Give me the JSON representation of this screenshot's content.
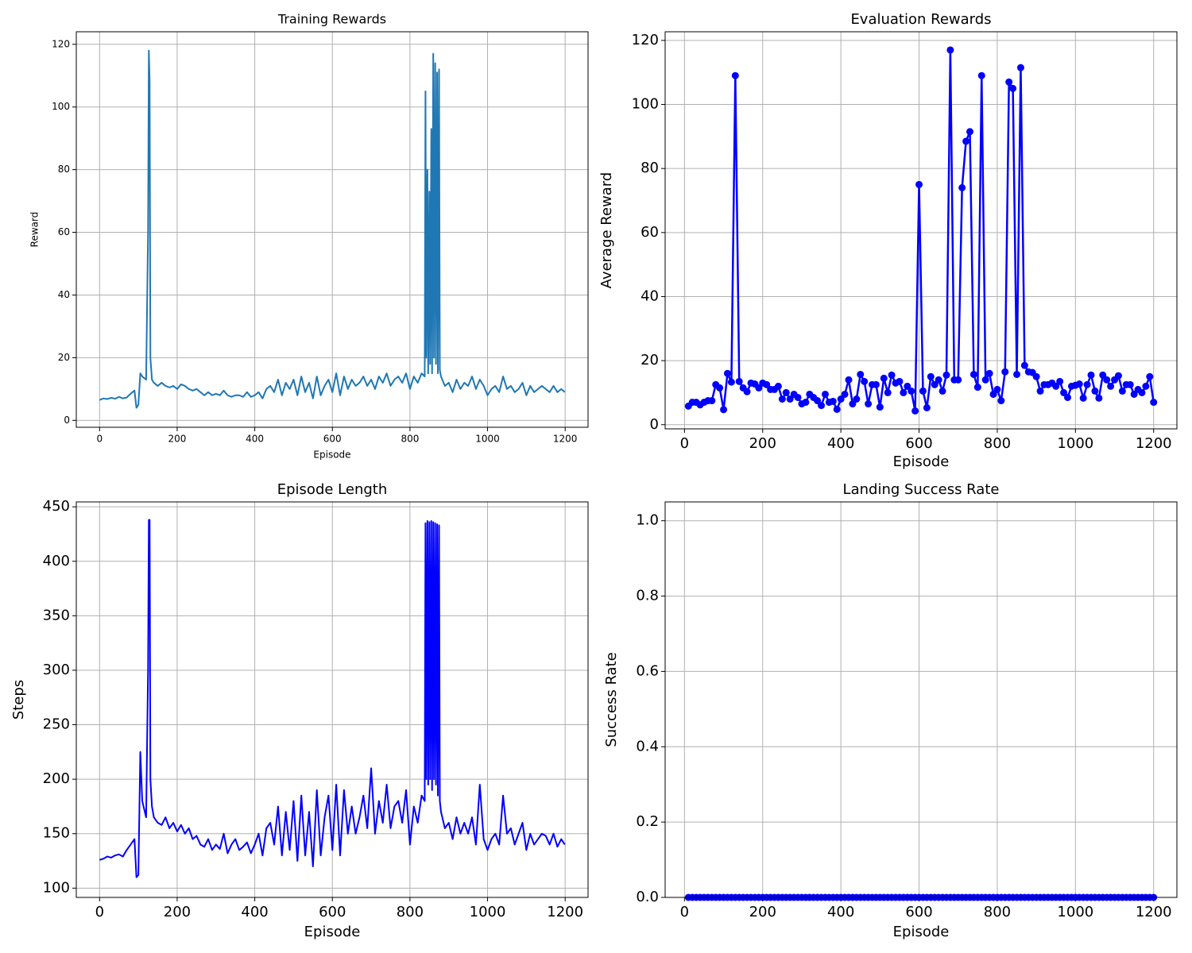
{
  "chart_data": [
    {
      "type": "line",
      "title": "Training Rewards",
      "xlabel": "Episode",
      "ylabel": "Reward",
      "color": "#1f77b4",
      "marker": false,
      "grid": true,
      "xlim": [
        -60,
        1259
      ],
      "ylim": [
        -2.2,
        124
      ],
      "xticks": [
        0,
        200,
        400,
        600,
        800,
        1000,
        1200
      ],
      "yticks": [
        0,
        20,
        40,
        60,
        80,
        100,
        120
      ],
      "x": [
        0,
        10,
        20,
        30,
        40,
        50,
        60,
        70,
        80,
        90,
        95,
        100,
        105,
        110,
        120,
        125,
        127,
        129,
        131,
        135,
        140,
        150,
        160,
        170,
        180,
        190,
        200,
        210,
        220,
        230,
        240,
        250,
        260,
        270,
        280,
        290,
        300,
        310,
        320,
        330,
        340,
        350,
        360,
        370,
        380,
        390,
        400,
        410,
        420,
        430,
        440,
        450,
        460,
        470,
        480,
        490,
        500,
        510,
        520,
        530,
        540,
        550,
        560,
        570,
        580,
        590,
        600,
        610,
        620,
        630,
        640,
        650,
        660,
        670,
        680,
        690,
        700,
        710,
        720,
        730,
        740,
        750,
        760,
        770,
        780,
        790,
        800,
        810,
        820,
        830,
        838,
        840,
        842,
        845,
        847,
        850,
        852,
        855,
        857,
        860,
        862,
        865,
        867,
        870,
        872,
        875,
        877,
        880,
        890,
        900,
        910,
        920,
        930,
        940,
        950,
        960,
        970,
        980,
        990,
        1000,
        1010,
        1020,
        1030,
        1040,
        1050,
        1060,
        1070,
        1080,
        1090,
        1100,
        1110,
        1120,
        1130,
        1140,
        1150,
        1160,
        1170,
        1180,
        1190,
        1199
      ],
      "values": [
        6.5,
        7,
        6.8,
        7.2,
        6.9,
        7.5,
        7,
        7.3,
        8.5,
        9.5,
        4,
        5,
        15,
        14,
        13,
        60,
        118,
        108,
        20,
        13,
        12,
        11,
        12,
        11,
        10.5,
        11,
        10,
        11.5,
        11,
        10,
        9.5,
        10,
        9,
        8,
        9,
        8,
        8.5,
        8,
        9.5,
        8,
        7.5,
        8,
        8,
        7.5,
        9,
        7.5,
        8,
        9,
        7,
        10,
        11,
        9,
        13,
        8,
        12,
        10,
        13,
        8,
        14,
        9,
        12,
        7,
        14,
        8,
        11,
        13,
        9,
        15,
        8,
        14,
        10,
        13,
        11,
        12,
        14,
        11,
        13,
        10,
        14,
        12,
        15,
        11,
        13,
        14,
        12,
        15,
        10,
        14,
        12,
        15,
        14,
        105,
        20,
        80,
        15,
        73,
        18,
        93,
        15,
        117,
        20,
        114,
        18,
        111,
        15,
        112,
        16,
        14,
        11,
        12,
        9,
        13,
        10,
        12,
        11,
        14,
        10,
        13,
        11,
        8,
        10,
        11,
        9,
        14,
        10,
        11,
        9,
        10,
        12,
        8,
        11,
        9,
        10,
        11,
        10,
        9,
        11,
        9,
        10,
        9
      ]
    },
    {
      "type": "line",
      "title": "Evaluation Rewards",
      "xlabel": "Episode",
      "ylabel": "Average Reward",
      "color": "blue",
      "marker": true,
      "grid": true,
      "xlim": [
        -49.5,
        1259.5
      ],
      "ylim": [
        -1.3,
        122.7
      ],
      "xticks": [
        0,
        200,
        400,
        600,
        800,
        1000,
        1200
      ],
      "yticks": [
        0,
        20,
        40,
        60,
        80,
        100,
        120
      ],
      "x": [
        10,
        20,
        30,
        40,
        50,
        60,
        70,
        80,
        90,
        100,
        110,
        120,
        130,
        140,
        150,
        160,
        170,
        180,
        190,
        200,
        210,
        220,
        230,
        240,
        250,
        260,
        270,
        280,
        290,
        300,
        310,
        320,
        330,
        340,
        350,
        360,
        370,
        380,
        390,
        400,
        410,
        420,
        430,
        440,
        450,
        460,
        470,
        480,
        490,
        500,
        510,
        520,
        530,
        540,
        550,
        560,
        570,
        580,
        590,
        600,
        610,
        620,
        630,
        640,
        650,
        660,
        670,
        680,
        690,
        700,
        710,
        720,
        730,
        740,
        750,
        760,
        770,
        780,
        790,
        800,
        810,
        820,
        830,
        840,
        850,
        860,
        870,
        880,
        890,
        900,
        910,
        920,
        930,
        940,
        950,
        960,
        970,
        980,
        990,
        1000,
        1010,
        1020,
        1030,
        1040,
        1050,
        1060,
        1070,
        1080,
        1090,
        1100,
        1110,
        1120,
        1130,
        1140,
        1150,
        1160,
        1170,
        1180,
        1190,
        1200
      ],
      "values": [
        5.8,
        7,
        7,
        6.2,
        7,
        7.5,
        7.5,
        12.5,
        11.5,
        4.7,
        16,
        13.3,
        109,
        13.5,
        11.5,
        10.3,
        13,
        12.7,
        11.5,
        13,
        12.5,
        11,
        11,
        12,
        8,
        10,
        8,
        9.5,
        8.5,
        6.5,
        7,
        9.5,
        8.5,
        7.5,
        6,
        9.5,
        7,
        7.3,
        4.8,
        8,
        9.5,
        14,
        6.5,
        8,
        15.7,
        13.5,
        6.5,
        12.5,
        12.5,
        5.5,
        14.5,
        10,
        15.5,
        13,
        13.5,
        10,
        12,
        10.5,
        4.3,
        75,
        10.5,
        5.3,
        15,
        12.5,
        14,
        10.5,
        15.5,
        117,
        14,
        14,
        74,
        88.5,
        91.5,
        15.7,
        11.7,
        109,
        14,
        16,
        9.5,
        11,
        7.5,
        16.5,
        107,
        105,
        15.7,
        111.5,
        18.5,
        16.5,
        16.3,
        15,
        10.5,
        12.5,
        12.5,
        13,
        12,
        13.5,
        10,
        8.5,
        12,
        12.3,
        12.7,
        8.3,
        12.5,
        15.5,
        10.5,
        8.3,
        15.5,
        14,
        12,
        14,
        15.3,
        10.5,
        12.5,
        12.5,
        9.5,
        11,
        10,
        12,
        15,
        7
      ]
    },
    {
      "type": "line",
      "title": "Episode Length",
      "xlabel": "Episode",
      "ylabel": "Steps",
      "color": "blue",
      "marker": false,
      "grid": true,
      "xlim": [
        -60,
        1259
      ],
      "ylim": [
        91.5,
        454.5
      ],
      "xticks": [
        0,
        200,
        400,
        600,
        800,
        1000,
        1200
      ],
      "yticks": [
        100,
        150,
        200,
        250,
        300,
        350,
        400,
        450
      ],
      "x": [
        0,
        10,
        20,
        30,
        40,
        50,
        60,
        70,
        80,
        90,
        95,
        100,
        105,
        110,
        120,
        125,
        127,
        129,
        131,
        135,
        140,
        150,
        160,
        170,
        180,
        190,
        200,
        210,
        220,
        230,
        240,
        250,
        260,
        270,
        280,
        290,
        300,
        310,
        320,
        330,
        340,
        350,
        360,
        370,
        380,
        390,
        400,
        410,
        420,
        430,
        440,
        450,
        460,
        470,
        480,
        490,
        500,
        510,
        520,
        530,
        540,
        550,
        560,
        570,
        580,
        590,
        600,
        610,
        620,
        630,
        640,
        650,
        660,
        670,
        680,
        690,
        700,
        710,
        720,
        730,
        740,
        750,
        760,
        770,
        780,
        790,
        800,
        810,
        820,
        830,
        838,
        840,
        842,
        845,
        847,
        850,
        852,
        855,
        857,
        860,
        862,
        865,
        867,
        870,
        872,
        875,
        877,
        880,
        890,
        900,
        910,
        920,
        930,
        940,
        950,
        960,
        970,
        980,
        990,
        1000,
        1010,
        1020,
        1030,
        1040,
        1050,
        1060,
        1070,
        1080,
        1090,
        1100,
        1110,
        1120,
        1130,
        1140,
        1150,
        1160,
        1170,
        1180,
        1190,
        1199
      ],
      "values": [
        126,
        127,
        129,
        128,
        130,
        131,
        129,
        135,
        140,
        145,
        110,
        112,
        225,
        180,
        165,
        300,
        438,
        438,
        200,
        175,
        165,
        160,
        158,
        165,
        155,
        160,
        152,
        158,
        150,
        155,
        145,
        148,
        140,
        138,
        145,
        135,
        140,
        136,
        150,
        132,
        140,
        145,
        135,
        138,
        142,
        132,
        140,
        150,
        130,
        155,
        160,
        140,
        175,
        130,
        170,
        135,
        180,
        125,
        185,
        130,
        170,
        120,
        190,
        130,
        165,
        185,
        135,
        195,
        130,
        190,
        150,
        175,
        150,
        165,
        185,
        155,
        210,
        150,
        180,
        160,
        195,
        155,
        175,
        180,
        160,
        190,
        140,
        175,
        160,
        185,
        180,
        435,
        200,
        437,
        195,
        436,
        200,
        437,
        190,
        436,
        200,
        435,
        195,
        434,
        185,
        433,
        180,
        170,
        155,
        160,
        145,
        165,
        150,
        160,
        150,
        165,
        140,
        195,
        145,
        135,
        145,
        150,
        140,
        185,
        150,
        155,
        140,
        150,
        160,
        135,
        150,
        140,
        145,
        150,
        148,
        140,
        150,
        138,
        145,
        140
      ]
    },
    {
      "type": "line",
      "title": "Landing Success Rate",
      "xlabel": "Episode",
      "ylabel": "Success Rate",
      "color": "blue",
      "marker": true,
      "grid": true,
      "xlim": [
        -49.5,
        1259.5
      ],
      "ylim": [
        0,
        1.05
      ],
      "xticks": [
        0,
        200,
        400,
        600,
        800,
        1000,
        1200
      ],
      "yticks": [
        {
          "value": 0,
          "label": "0.0"
        },
        {
          "value": 0.2,
          "label": "0.2"
        },
        {
          "value": 0.4,
          "label": "0.4"
        },
        {
          "value": 0.6,
          "label": "0.6"
        },
        {
          "value": 0.8,
          "label": "0.8"
        },
        {
          "value": 1,
          "label": "1.0"
        }
      ],
      "x": [
        10,
        20,
        30,
        40,
        50,
        60,
        70,
        80,
        90,
        100,
        110,
        120,
        130,
        140,
        150,
        160,
        170,
        180,
        190,
        200,
        210,
        220,
        230,
        240,
        250,
        260,
        270,
        280,
        290,
        300,
        310,
        320,
        330,
        340,
        350,
        360,
        370,
        380,
        390,
        400,
        410,
        420,
        430,
        440,
        450,
        460,
        470,
        480,
        490,
        500,
        510,
        520,
        530,
        540,
        550,
        560,
        570,
        580,
        590,
        600,
        610,
        620,
        630,
        640,
        650,
        660,
        670,
        680,
        690,
        700,
        710,
        720,
        730,
        740,
        750,
        760,
        770,
        780,
        790,
        800,
        810,
        820,
        830,
        840,
        850,
        860,
        870,
        880,
        890,
        900,
        910,
        920,
        930,
        940,
        950,
        960,
        970,
        980,
        990,
        1000,
        1010,
        1020,
        1030,
        1040,
        1050,
        1060,
        1070,
        1080,
        1090,
        1100,
        1110,
        1120,
        1130,
        1140,
        1150,
        1160,
        1170,
        1180,
        1190,
        1200
      ],
      "values": [
        0,
        0,
        0,
        0,
        0,
        0,
        0,
        0,
        0,
        0,
        0,
        0,
        0,
        0,
        0,
        0,
        0,
        0,
        0,
        0,
        0,
        0,
        0,
        0,
        0,
        0,
        0,
        0,
        0,
        0,
        0,
        0,
        0,
        0,
        0,
        0,
        0,
        0,
        0,
        0,
        0,
        0,
        0,
        0,
        0,
        0,
        0,
        0,
        0,
        0,
        0,
        0,
        0,
        0,
        0,
        0,
        0,
        0,
        0,
        0,
        0,
        0,
        0,
        0,
        0,
        0,
        0,
        0,
        0,
        0,
        0,
        0,
        0,
        0,
        0,
        0,
        0,
        0,
        0,
        0,
        0,
        0,
        0,
        0,
        0,
        0,
        0,
        0,
        0,
        0,
        0,
        0,
        0,
        0,
        0,
        0,
        0,
        0,
        0,
        0,
        0,
        0,
        0,
        0,
        0,
        0,
        0,
        0,
        0,
        0,
        0,
        0,
        0,
        0,
        0,
        0,
        0,
        0,
        0,
        0
      ]
    }
  ]
}
